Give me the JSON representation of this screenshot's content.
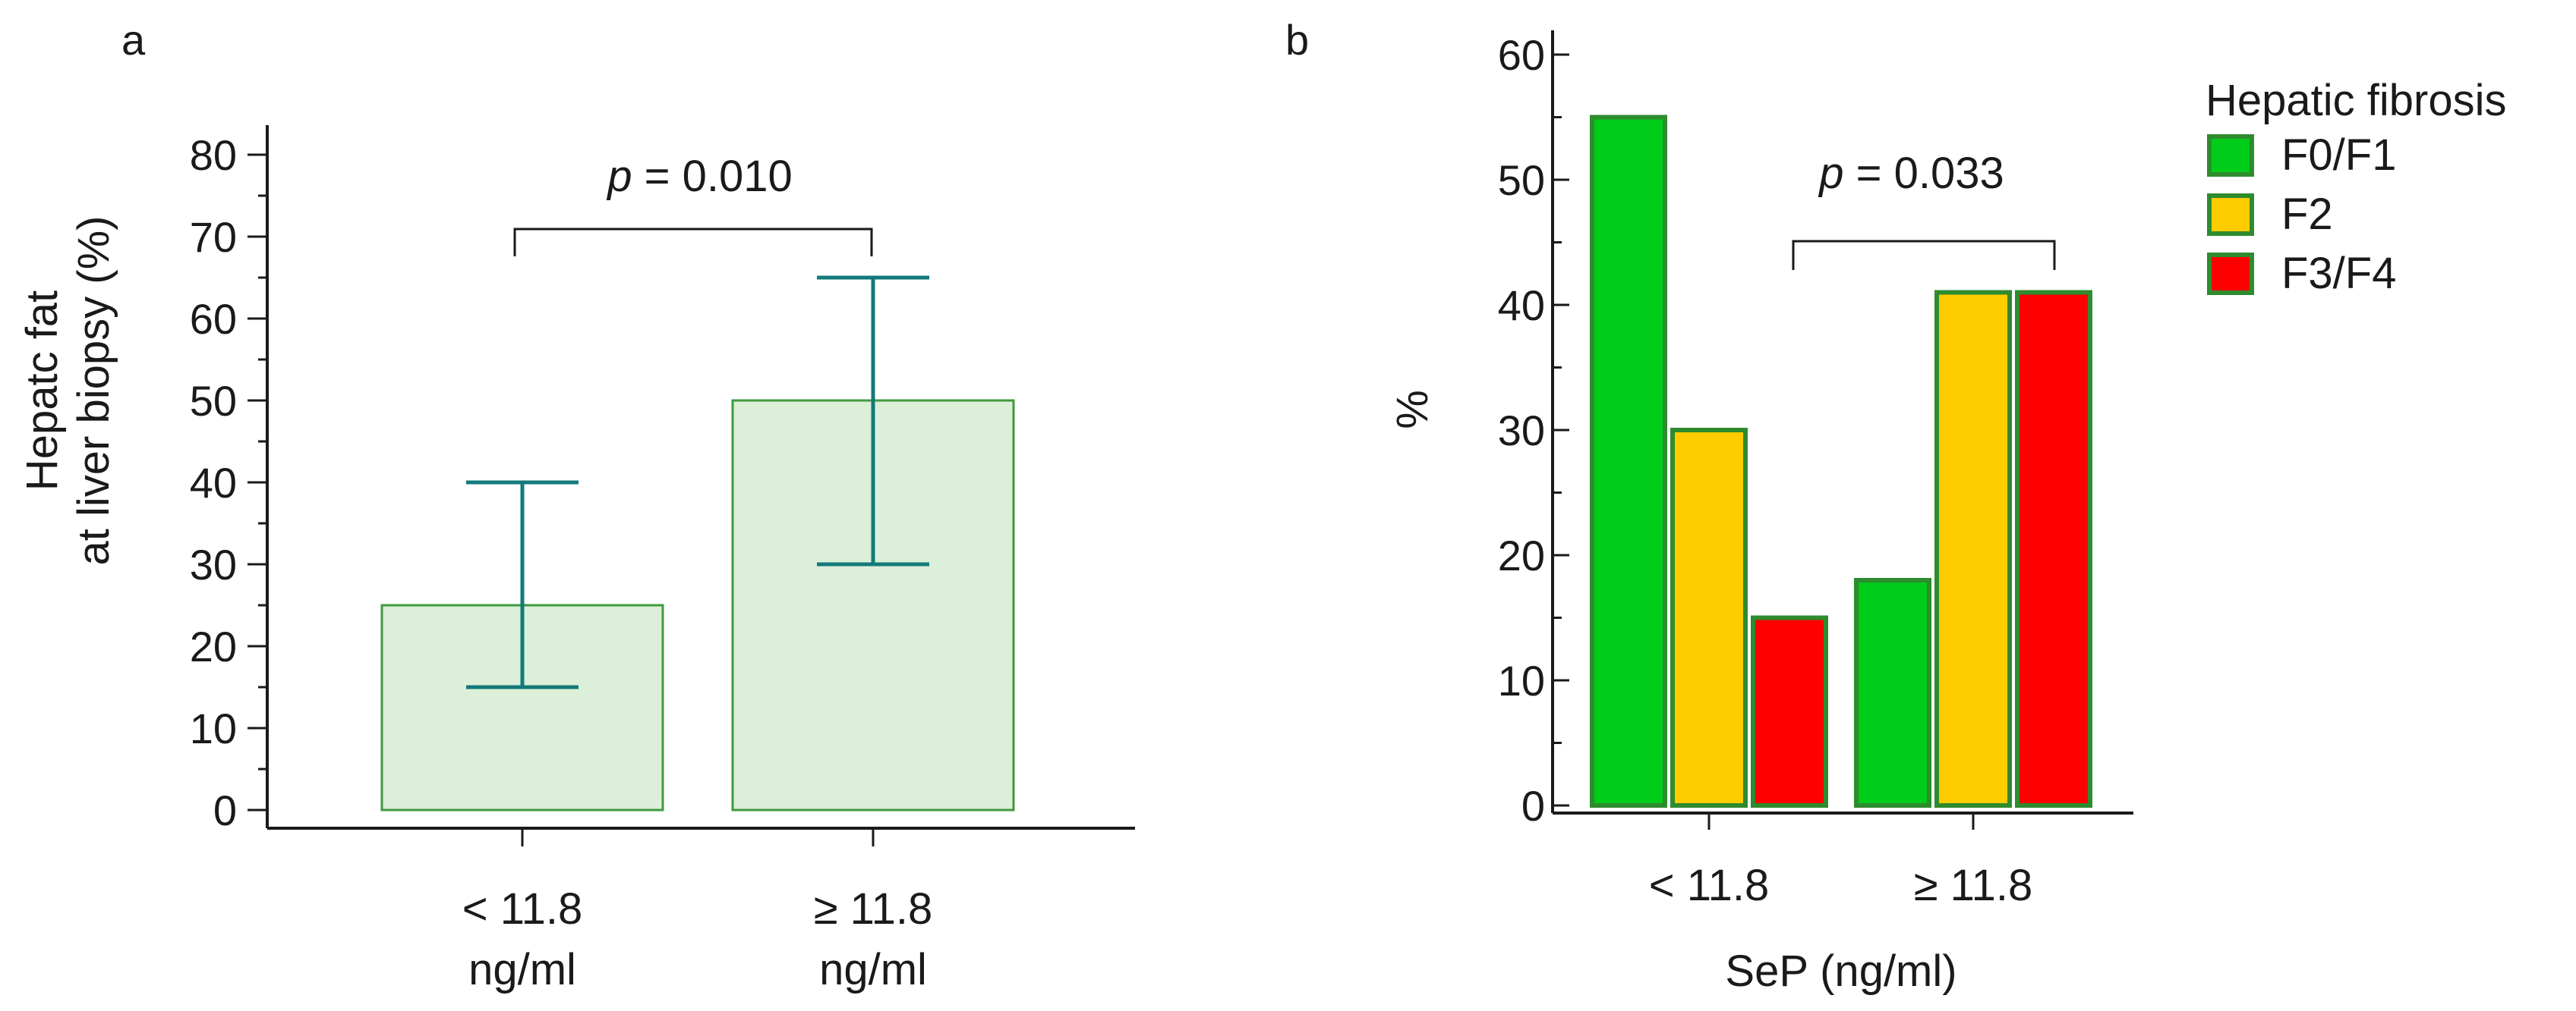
{
  "chart_data": [
    {
      "panel": "a",
      "type": "bar",
      "ylabel_lines": [
        "Hepatc fat",
        "at liver biopsy (%)"
      ],
      "ylim": [
        0,
        80
      ],
      "yticks": [
        0,
        10,
        20,
        30,
        40,
        50,
        60,
        70,
        80
      ],
      "categories": [
        {
          "line1": "< 11.8",
          "line2": "ng/ml"
        },
        {
          "line1": "≥ 11.8",
          "line2": "ng/ml"
        }
      ],
      "values": [
        25,
        50
      ],
      "error_low": [
        15,
        30
      ],
      "error_high": [
        40,
        65
      ],
      "annotation": {
        "p_symbol": "p",
        "p_text": " = 0.010"
      },
      "bar_fill": "#dcefd9",
      "bar_stroke": "#3f9a3f",
      "error_color": "#127a7a"
    },
    {
      "panel": "b",
      "type": "bar",
      "ylabel": "%",
      "xlabel": "SeP (ng/ml)",
      "ylim": [
        0,
        60
      ],
      "yticks": [
        0,
        10,
        20,
        30,
        40,
        50,
        60
      ],
      "categories": [
        "< 11.8",
        "≥ 11.8"
      ],
      "series": [
        {
          "name": "F0/F1",
          "color": "#00cc1a",
          "values": [
            55,
            18
          ]
        },
        {
          "name": "F2",
          "color": "#ffcc00",
          "values": [
            30,
            41
          ]
        },
        {
          "name": "F3/F4",
          "color": "#ff0000",
          "values": [
            15,
            41
          ]
        }
      ],
      "bar_stroke": "#2e8b2e",
      "legend": {
        "title": "Hepatic fibrosis",
        "position": "top-right"
      },
      "annotation": {
        "p_symbol": "p",
        "p_text": " = 0.033"
      }
    }
  ]
}
